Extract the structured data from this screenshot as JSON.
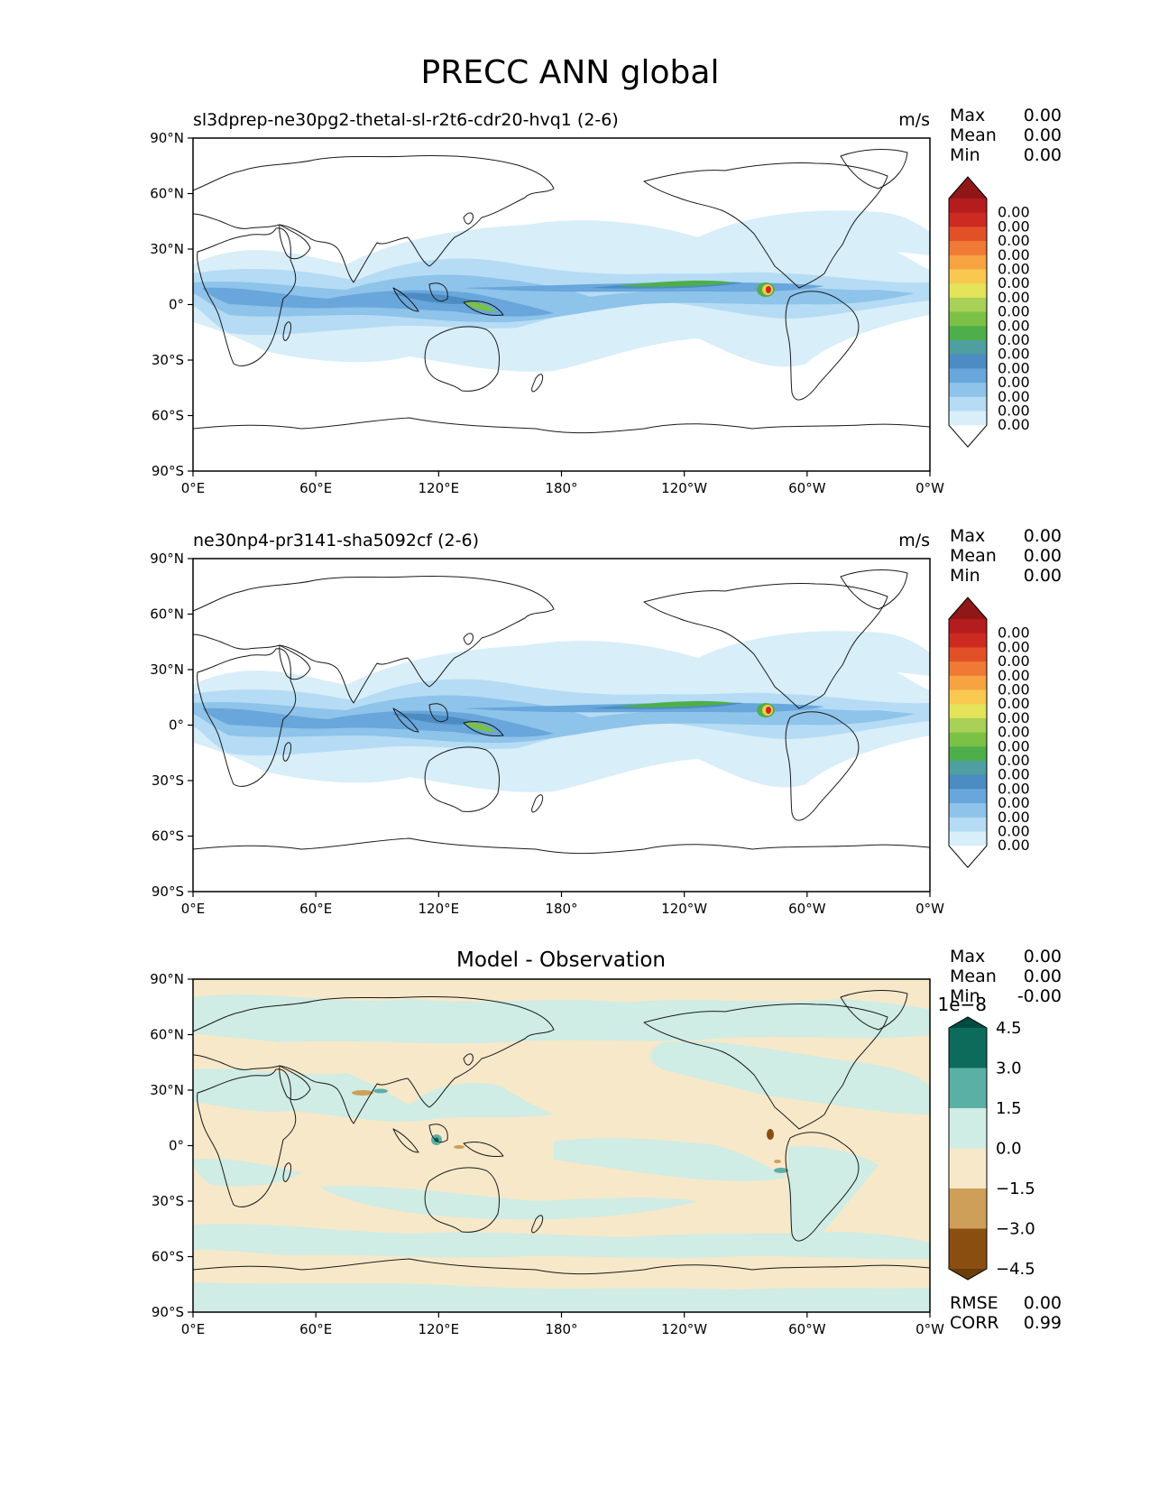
{
  "figure_title": "PRECC ANN global",
  "x_ticks": [
    "0°E",
    "60°E",
    "120°E",
    "180°",
    "120°W",
    "60°W",
    "0°W"
  ],
  "y_ticks": [
    "90°N",
    "60°N",
    "30°N",
    "0°",
    "30°S",
    "60°S",
    "90°S"
  ],
  "panels": [
    {
      "title": "sl3dprep-ne30pg2-thetal-sl-r2t6-cdr20-hvq1 (2-6)",
      "units": "m/s",
      "stats": [
        {
          "label": "Max",
          "value": "0.00"
        },
        {
          "label": "Mean",
          "value": "0.00"
        },
        {
          "label": "Min",
          "value": "0.00"
        }
      ]
    },
    {
      "title": "ne30np4-pr3141-sha5092cf (2-6)",
      "units": "m/s",
      "stats": [
        {
          "label": "Max",
          "value": "0.00"
        },
        {
          "label": "Mean",
          "value": "0.00"
        },
        {
          "label": "Min",
          "value": "0.00"
        }
      ]
    },
    {
      "title": "Model - Observation",
      "stats": [
        {
          "label": "Max",
          "value": "0.00"
        },
        {
          "label": "Mean",
          "value": "0.00"
        },
        {
          "label": "Min",
          "value": "-0.00"
        }
      ],
      "bottom_stats": [
        {
          "label": "RMSE",
          "value": "0.00"
        },
        {
          "label": "CORR",
          "value": "0.99"
        }
      ]
    }
  ],
  "model_colorbar": {
    "colors": [
      "#ffffff",
      "#d8eef9",
      "#b5dcf4",
      "#8ec3ea",
      "#68a6db",
      "#4c8cc3",
      "#4f9ea0",
      "#4eaf4a",
      "#7bc145",
      "#a9d057",
      "#e4e35a",
      "#f8c850",
      "#f7a342",
      "#f07a35",
      "#e25027",
      "#cd2a22",
      "#b41c1e",
      "#8f1718"
    ],
    "labels": [
      "0.00",
      "0.00",
      "0.00",
      "0.00",
      "0.00",
      "0.00",
      "0.00",
      "0.00",
      "0.00",
      "0.00",
      "0.00",
      "0.00",
      "0.00",
      "0.00",
      "0.00",
      "0.00"
    ]
  },
  "diff_colorbar": {
    "colors": [
      "#6b3d0b",
      "#8a4e11",
      "#cd9f58",
      "#f6e8c9",
      "#cfece5",
      "#5bb0a5",
      "#0d6b5c",
      "#004c42"
    ],
    "labels": [
      "4.5",
      "3.0",
      "1.5",
      "0.0",
      "−1.5",
      "−3.0",
      "−4.5"
    ],
    "scale_label": "1e−8"
  }
}
